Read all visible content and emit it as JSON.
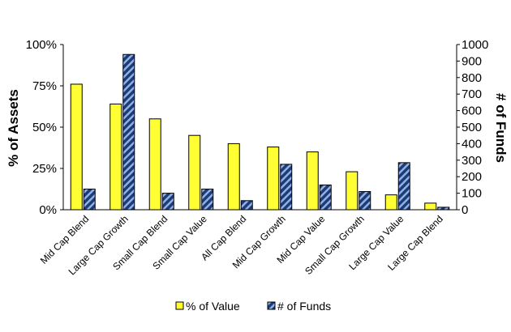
{
  "chart_data": {
    "type": "bar",
    "categories": [
      "Mid Cap Blend",
      "Large Cap Growth",
      "Small Cap Blend",
      "Small Cap Value",
      "All Cap Blend",
      "Mid Cap Growth",
      "Mid Cap Value",
      "Small Cap Growth",
      "Large Cap Value",
      "Large Cap Blend"
    ],
    "series": [
      {
        "name": "% of Value",
        "axis": "left",
        "color": "#ffff33",
        "values": [
          76,
          64,
          55,
          45,
          40,
          38,
          35,
          23,
          9,
          4
        ]
      },
      {
        "name": "# of Funds",
        "axis": "right",
        "color": "#1f3a7a",
        "pattern": "diagonal-stripes",
        "stripe_color": "#8fb3e0",
        "values": [
          125,
          940,
          100,
          125,
          55,
          275,
          150,
          110,
          285,
          15
        ]
      }
    ],
    "ylabel": "% of Assets",
    "ylabel_right": "# of Funds",
    "ylim": [
      0,
      100
    ],
    "ylim_right": [
      0,
      1000
    ],
    "yticks": [
      "0%",
      "25%",
      "50%",
      "75%",
      "100%"
    ],
    "yticks_right": [
      "0",
      "100",
      "200",
      "300",
      "400",
      "500",
      "600",
      "700",
      "800",
      "900",
      "1000"
    ],
    "legend_position": "bottom",
    "grid": false
  }
}
